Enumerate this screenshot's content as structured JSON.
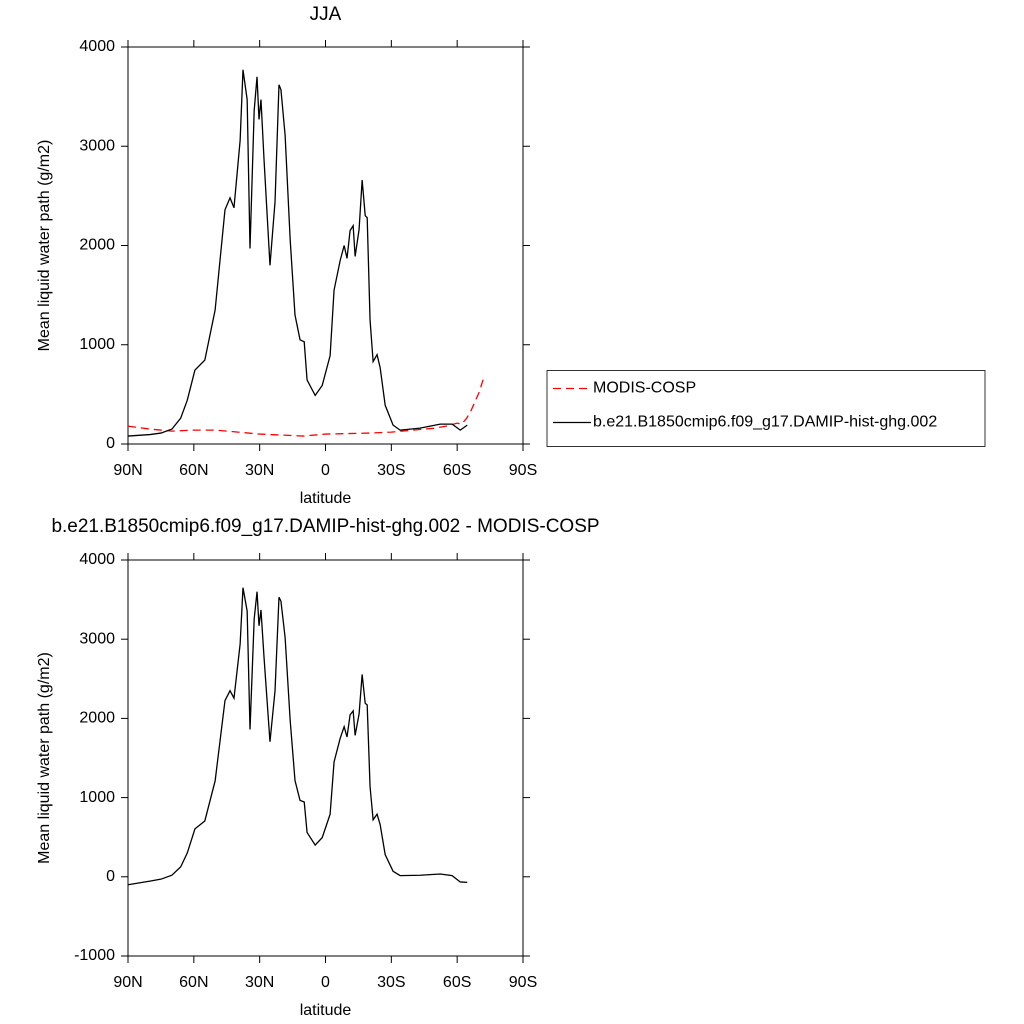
{
  "chart_data": [
    {
      "type": "line",
      "title": "JJA",
      "xlabel": "latitude",
      "ylabel": "Mean liquid water path (g/m2)",
      "xlim": [
        90,
        -90
      ],
      "xticks": [
        {
          "value": 90,
          "label": "90N"
        },
        {
          "value": 60,
          "label": "60N"
        },
        {
          "value": 30,
          "label": "30N"
        },
        0,
        {
          "value": -30,
          "label": "30S"
        },
        {
          "value": -60,
          "label": "60S"
        },
        {
          "value": -90,
          "label": "90S"
        }
      ],
      "ylim": [
        0,
        4000
      ],
      "yticks": [
        0,
        1000,
        2000,
        3000,
        4000
      ],
      "legend": "right",
      "series": [
        {
          "name": "MODIS-COSP",
          "color": "#ff0000",
          "linestyle": "dashed",
          "x": [
            90,
            80,
            70,
            60,
            50,
            40,
            30,
            20,
            10,
            0,
            -10,
            -20,
            -30,
            -40,
            -50,
            -55,
            -60,
            -62,
            -64,
            -66,
            -68,
            -70,
            -72,
            -73
          ],
          "values": [
            180,
            150,
            130,
            140,
            140,
            120,
            100,
            90,
            80,
            100,
            105,
            110,
            120,
            140,
            160,
            180,
            210,
            200,
            250,
            320,
            420,
            520,
            660,
            680
          ]
        },
        {
          "name": "b.e21.B1850cmip6.f09_g17.DAMIP-hist-ghg.002",
          "color": "#000000",
          "linestyle": "solid",
          "x": [
            90,
            80,
            75,
            70,
            66,
            63,
            59.5,
            55,
            50.3,
            45.8,
            43.5,
            41.7,
            38.9,
            37.6,
            35.7,
            34.4,
            32.5,
            31.2,
            30.3,
            29.4,
            28,
            25.3,
            23,
            21.2,
            20.3,
            18.4,
            16.1,
            13.9,
            11.6,
            9.7,
            8.4,
            4.7,
            1.5,
            -2.1,
            -3.9,
            -6.7,
            -8.5,
            -9.8,
            -11.2,
            -12.6,
            -13.5,
            -15.3,
            -16.7,
            -18.1,
            -19,
            -20.3,
            -21.7,
            -23.5,
            -24.9,
            -27.2,
            -30.8,
            -34,
            -43.1,
            -52.3,
            -57.7,
            -61.4,
            -64.6
          ],
          "values": [
            80,
            95,
            110,
            150,
            260,
            440,
            745,
            845,
            1350,
            2360,
            2480,
            2380,
            3060,
            3770,
            3470,
            1970,
            3360,
            3700,
            3270,
            3470,
            2860,
            1800,
            2440,
            3620,
            3570,
            3110,
            2060,
            1300,
            1050,
            1030,
            645,
            490,
            590,
            890,
            1550,
            1850,
            2000,
            1870,
            2150,
            2200,
            1890,
            2160,
            2660,
            2300,
            2280,
            1250,
            830,
            900,
            770,
            390,
            190,
            140,
            160,
            200,
            200,
            140,
            190
          ]
        }
      ]
    },
    {
      "type": "line",
      "title": "b.e21.B1850cmip6.f09_g17.DAMIP-hist-ghg.002 - MODIS-COSP",
      "xlabel": "latitude",
      "ylabel": "Mean liquid water path (g/m2)",
      "xlim": [
        90,
        -90
      ],
      "xticks": [
        {
          "value": 90,
          "label": "90N"
        },
        {
          "value": 60,
          "label": "60N"
        },
        {
          "value": 30,
          "label": "30N"
        },
        0,
        {
          "value": -30,
          "label": "30S"
        },
        {
          "value": -60,
          "label": "60S"
        },
        {
          "value": -90,
          "label": "90S"
        }
      ],
      "ylim": [
        -1000,
        4000
      ],
      "yticks": [
        -1000,
        0,
        1000,
        2000,
        3000,
        4000
      ],
      "series": [
        {
          "color": "#000000",
          "linestyle": "solid",
          "x": [
            90,
            80,
            75,
            70,
            66,
            63,
            59.5,
            55,
            50.3,
            45.8,
            43.5,
            41.7,
            38.9,
            37.6,
            35.7,
            34.4,
            32.5,
            31.2,
            30.3,
            29.4,
            28,
            25.3,
            23,
            21.2,
            20.3,
            18.4,
            16.1,
            13.9,
            11.6,
            9.7,
            8.4,
            4.7,
            1.5,
            -2.1,
            -3.9,
            -6.7,
            -8.5,
            -9.8,
            -11.2,
            -12.6,
            -13.5,
            -15.3,
            -16.7,
            -18.1,
            -19,
            -20.3,
            -21.7,
            -23.5,
            -24.9,
            -27.2,
            -30.8,
            -34,
            -43.1,
            -52.3,
            -57.7,
            -61.4,
            -64.6
          ],
          "values": [
            -100,
            -55,
            -30,
            20,
            125,
            300,
            605,
            705,
            1210,
            2225,
            2350,
            2255,
            2940,
            3650,
            3355,
            1860,
            3255,
            3600,
            3170,
            3370,
            2765,
            1705,
            2350,
            3530,
            3480,
            3020,
            1975,
            1215,
            965,
            945,
            560,
            400,
            495,
            790,
            1450,
            1750,
            1895,
            1765,
            2045,
            2095,
            1785,
            2055,
            2555,
            2190,
            2170,
            1140,
            720,
            790,
            660,
            280,
            70,
            15,
            20,
            35,
            15,
            -65,
            -70
          ]
        }
      ]
    }
  ]
}
